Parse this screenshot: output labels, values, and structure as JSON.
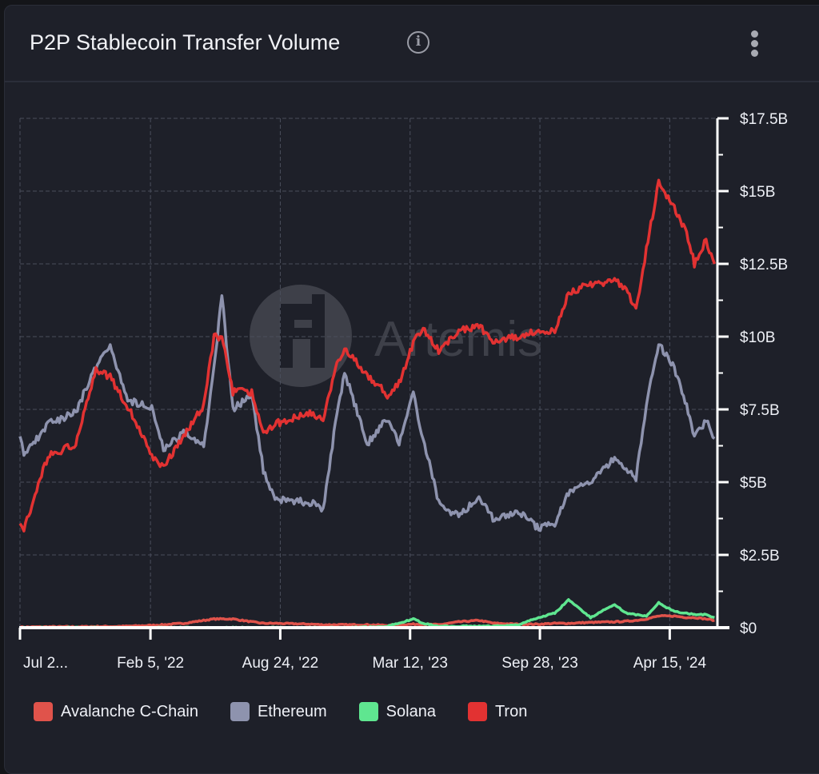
{
  "header": {
    "title": "P2P Stablecoin Transfer Volume",
    "info_icon": "info-icon",
    "menu_icon": "more-vertical-icon"
  },
  "watermark": "Artemis",
  "chart_data": {
    "type": "line",
    "title": "P2P Stablecoin Transfer Volume",
    "x_tick_labels": [
      "Jul 2...",
      "Feb 5, '22",
      "Aug 24, '22",
      "Mar 12, '23",
      "Sep 28, '23",
      "Apr 15, '24"
    ],
    "x_ticks": [
      "2021-07-19",
      "2022-02-05",
      "2022-08-24",
      "2023-03-12",
      "2023-09-28",
      "2024-04-15"
    ],
    "xlim": [
      "2021-07-19",
      "2024-06-25"
    ],
    "y_tick_labels": [
      "$0",
      "$2.5B",
      "$5B",
      "$7.5B",
      "$10B",
      "$12.5B",
      "$15B",
      "$17.5B"
    ],
    "y_ticks": [
      0,
      2.5,
      5,
      7.5,
      10,
      12.5,
      15,
      17.5
    ],
    "ylim": [
      0,
      17.5
    ],
    "y_unit": "USD billions",
    "y_axis_side": "right",
    "grid": true,
    "legend_position": "bottom-left",
    "x": [
      "2021-07-19",
      "2021-07-25",
      "2021-08-31",
      "2021-10-13",
      "2021-11-13",
      "2021-12-05",
      "2022-01-01",
      "2022-02-07",
      "2022-02-25",
      "2022-03-28",
      "2022-04-28",
      "2022-05-14",
      "2022-05-26",
      "2022-06-12",
      "2022-07-11",
      "2022-07-29",
      "2022-08-16",
      "2022-10-11",
      "2022-10-29",
      "2022-11-17",
      "2022-12-01",
      "2023-01-05",
      "2023-02-05",
      "2023-02-23",
      "2023-03-17",
      "2023-04-01",
      "2023-04-25",
      "2023-05-26",
      "2023-06-26",
      "2023-07-20",
      "2023-08-26",
      "2023-09-26",
      "2023-10-21",
      "2023-11-11",
      "2023-12-15",
      "2024-01-21",
      "2024-02-08",
      "2024-02-23",
      "2024-03-10",
      "2024-03-29",
      "2024-04-22",
      "2024-05-11",
      "2024-05-23",
      "2024-06-10",
      "2024-06-23"
    ],
    "series": [
      {
        "name": "Avalanche C-Chain",
        "color": "#e0534b",
        "values": [
          0.02,
          0.02,
          0.03,
          0.03,
          0.04,
          0.04,
          0.05,
          0.08,
          0.1,
          0.15,
          0.25,
          0.3,
          0.3,
          0.3,
          0.2,
          0.15,
          0.15,
          0.12,
          0.1,
          0.1,
          0.1,
          0.1,
          0.08,
          0.1,
          0.12,
          0.12,
          0.1,
          0.2,
          0.25,
          0.15,
          0.12,
          0.12,
          0.15,
          0.15,
          0.18,
          0.2,
          0.22,
          0.25,
          0.3,
          0.4,
          0.4,
          0.35,
          0.35,
          0.3,
          0.25
        ]
      },
      {
        "name": "Ethereum",
        "color": "#8e93ae",
        "values": [
          6.7,
          5.9,
          7.0,
          7.4,
          9.0,
          9.7,
          7.8,
          7.6,
          6.1,
          6.7,
          6.2,
          9.0,
          11.4,
          7.5,
          8.0,
          5.4,
          4.4,
          4.3,
          4.1,
          7.0,
          8.8,
          6.3,
          7.2,
          6.3,
          8.0,
          6.5,
          4.3,
          3.8,
          4.5,
          3.7,
          4.0,
          3.4,
          3.6,
          4.6,
          5.0,
          5.8,
          5.5,
          5.1,
          7.6,
          9.8,
          8.9,
          7.6,
          6.6,
          7.1,
          6.5
        ]
      },
      {
        "name": "Solana",
        "color": "#5fe690",
        "values": [
          0,
          0,
          0,
          0,
          0,
          0,
          0,
          0,
          0,
          0,
          0,
          0,
          0,
          0,
          0,
          0,
          0,
          0,
          0,
          0,
          0,
          0.02,
          0.05,
          0.15,
          0.3,
          0.15,
          0.05,
          0.05,
          0.05,
          0.05,
          0.1,
          0.35,
          0.5,
          0.95,
          0.35,
          0.8,
          0.5,
          0.45,
          0.4,
          0.85,
          0.55,
          0.5,
          0.45,
          0.45,
          0.35
        ]
      },
      {
        "name": "Tron",
        "color": "#e23232",
        "values": [
          3.7,
          3.4,
          5.9,
          6.3,
          8.9,
          8.6,
          7.6,
          5.9,
          5.5,
          6.6,
          7.6,
          10.0,
          10.0,
          8.1,
          8.1,
          6.7,
          7.0,
          7.4,
          7.1,
          8.9,
          9.6,
          8.7,
          8.0,
          8.4,
          9.8,
          10.3,
          9.5,
          10.2,
          10.4,
          9.8,
          10.0,
          10.2,
          10.2,
          11.5,
          11.8,
          11.9,
          11.7,
          10.9,
          13.0,
          15.3,
          14.4,
          13.6,
          12.5,
          13.3,
          12.5
        ]
      }
    ]
  }
}
